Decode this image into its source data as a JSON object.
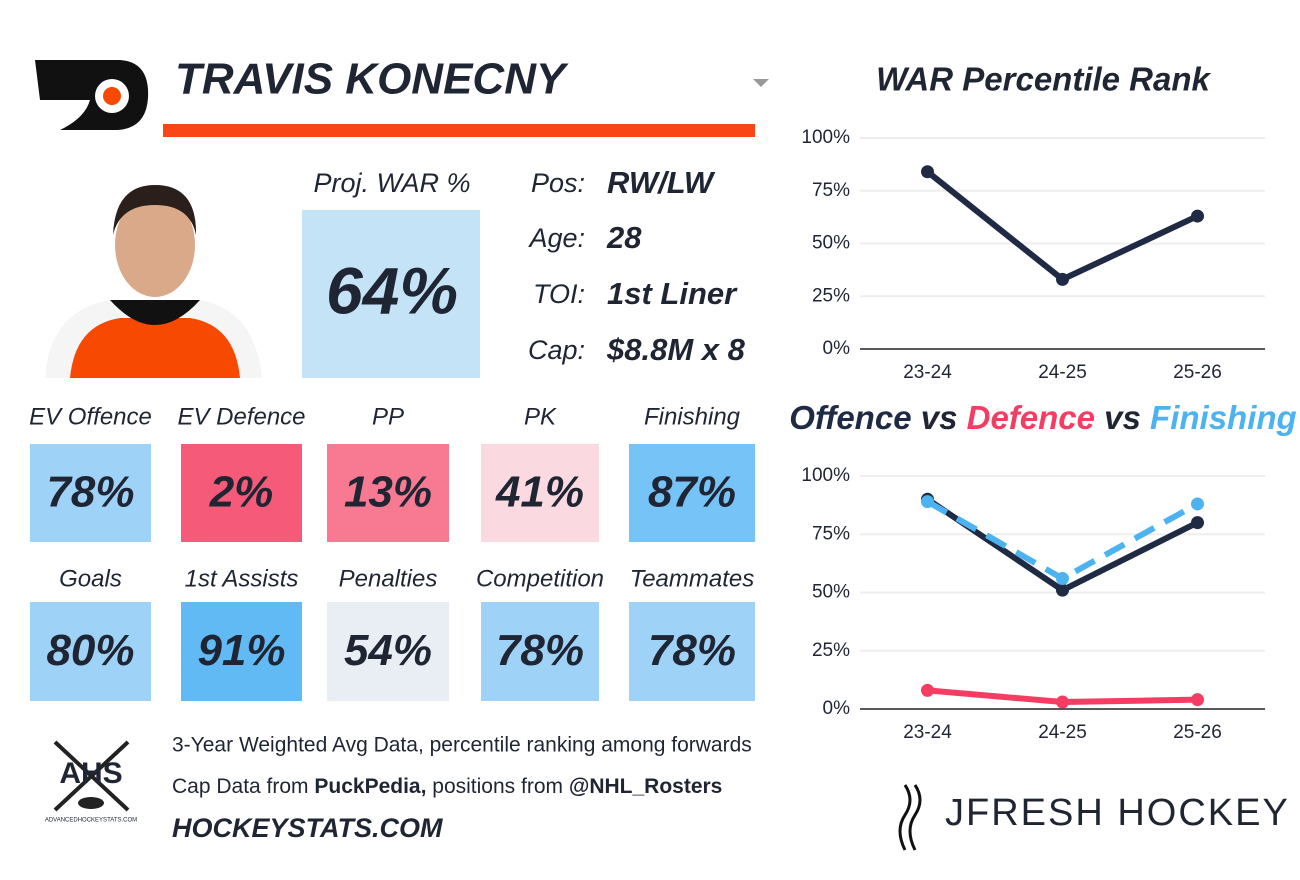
{
  "header": {
    "player": "TRAVIS KONECNY"
  },
  "proj_war": {
    "label": "Proj. WAR %",
    "value": "64%",
    "color": "#c5e3f7"
  },
  "info": [
    {
      "label": "Pos:",
      "value": "RW/LW"
    },
    {
      "label": "Age:",
      "value": "28"
    },
    {
      "label": "TOI:",
      "value": "1st Liner"
    },
    {
      "label": "Cap:",
      "value": "$8.8M x 8"
    }
  ],
  "tiles": [
    {
      "label": "EV Offence",
      "value": "78%",
      "color": "#9ed3f7"
    },
    {
      "label": "EV Defence",
      "value": "2%",
      "color": "#f55a78"
    },
    {
      "label": "PP",
      "value": "13%",
      "color": "#f77a92"
    },
    {
      "label": "PK",
      "value": "41%",
      "color": "#fad9e0"
    },
    {
      "label": "Finishing",
      "value": "87%",
      "color": "#76c3f7"
    },
    {
      "label": "Goals",
      "value": "80%",
      "color": "#9ed3f7"
    },
    {
      "label": "1st Assists",
      "value": "91%",
      "color": "#62baf5"
    },
    {
      "label": "Penalties",
      "value": "54%",
      "color": "#e8eef4"
    },
    {
      "label": "Competition",
      "value": "78%",
      "color": "#9ed3f7"
    },
    {
      "label": "Teammates",
      "value": "78%",
      "color": "#9ed3f7"
    }
  ],
  "footer": {
    "logo": "AHS",
    "logo_site": "ADVANCEDHOCKEYSTATS.COM",
    "line1": "3-Year Weighted Avg Data, percentile ranking among forwards",
    "line2": [
      "Cap Data from ",
      "PuckPedia,",
      " positions from ",
      "@NHL_Rosters"
    ],
    "site": "HOCKEYSTATS.COM",
    "brand": "JFRESH HOCKEY"
  },
  "chart_data": [
    {
      "type": "line",
      "title": "WAR Percentile Rank",
      "categories": [
        "23-24",
        "24-25",
        "25-26"
      ],
      "series": [
        {
          "color": "#1f2a44",
          "values": [
            84,
            33,
            63
          ]
        }
      ],
      "ylim": [
        0,
        100
      ],
      "yticks": [
        {
          "value": 0,
          "label": "0%"
        },
        {
          "value": 25,
          "label": "25%"
        },
        {
          "value": 50,
          "label": "50%"
        },
        {
          "value": 75,
          "label": "75%"
        },
        {
          "value": 100,
          "label": "100%"
        }
      ],
      "grid": true
    },
    {
      "type": "line",
      "title_joiner": "vs",
      "categories": [
        "23-24",
        "24-25",
        "25-26"
      ],
      "series": [
        {
          "name": "Offence",
          "color": "#1f2a44",
          "values": [
            90,
            51,
            80
          ]
        },
        {
          "name": "Defence",
          "color": "#f53d63",
          "values": [
            8,
            3,
            4
          ]
        },
        {
          "name": "Finishing",
          "color": "#4db3f0",
          "values": [
            89,
            56,
            88
          ],
          "dashed": true
        }
      ],
      "ylim": [
        0,
        100
      ],
      "yticks": [
        {
          "value": 0,
          "label": "0%"
        },
        {
          "value": 25,
          "label": "25%"
        },
        {
          "value": 50,
          "label": "50%"
        },
        {
          "value": 75,
          "label": "75%"
        },
        {
          "value": 100,
          "label": "100%"
        }
      ],
      "grid": true
    }
  ]
}
